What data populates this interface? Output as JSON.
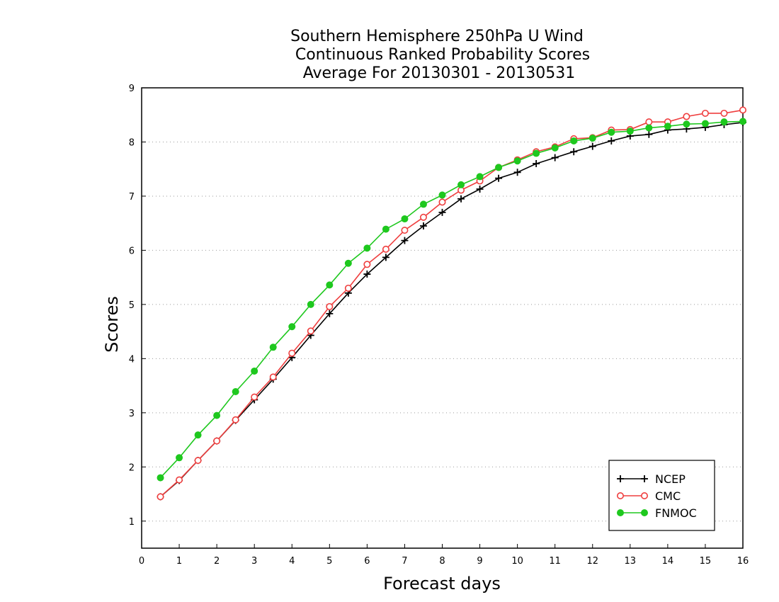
{
  "chart_data": {
    "type": "line",
    "title": "Southern Hemisphere 250hPa U Wind",
    "subtitle": "Continuous Ranked Probability Scores",
    "subtitle2": "Average For 20130301 - 20130531",
    "xlabel": "Forecast days",
    "ylabel": "Scores",
    "xlim": [
      0,
      16
    ],
    "ylim": [
      0.5,
      9
    ],
    "xticks": [
      0,
      1,
      2,
      3,
      4,
      5,
      6,
      7,
      8,
      9,
      10,
      11,
      12,
      13,
      14,
      15,
      16
    ],
    "yticks": [
      1,
      2,
      3,
      4,
      5,
      6,
      7,
      8,
      9
    ],
    "grid": "horizontal dotted",
    "legend": "bottom-right",
    "x": [
      0.5,
      1,
      1.5,
      2,
      2.5,
      3,
      3.5,
      4,
      4.5,
      5,
      5.5,
      6,
      6.5,
      7,
      7.5,
      8,
      8.5,
      9,
      9.5,
      10,
      10.5,
      11,
      11.5,
      12,
      12.5,
      13,
      13.5,
      14,
      14.5,
      15,
      15.5,
      16
    ],
    "series": [
      {
        "name": "NCEP",
        "color": "#000000",
        "marker": "plus",
        "values": [
          1.45,
          1.75,
          2.12,
          2.48,
          2.86,
          3.24,
          3.62,
          4.02,
          4.43,
          4.83,
          5.21,
          5.56,
          5.87,
          6.18,
          6.45,
          6.7,
          6.95,
          7.13,
          7.33,
          7.44,
          7.6,
          7.71,
          7.82,
          7.92,
          8.02,
          8.11,
          8.14,
          8.22,
          8.24,
          8.27,
          8.32,
          8.36
        ]
      },
      {
        "name": "CMC",
        "color": "#ef3e3e",
        "marker": "open-circle",
        "values": [
          1.45,
          1.76,
          2.12,
          2.48,
          2.87,
          3.29,
          3.66,
          4.1,
          4.51,
          4.96,
          5.3,
          5.74,
          6.02,
          6.37,
          6.61,
          6.89,
          7.11,
          7.28,
          7.53,
          7.67,
          7.82,
          7.91,
          8.06,
          8.08,
          8.22,
          8.23,
          8.37,
          8.37,
          8.47,
          8.53,
          8.53,
          8.59
        ]
      },
      {
        "name": "FNMOC",
        "color": "#1ec81e",
        "marker": "filled-circle",
        "values": [
          1.8,
          2.17,
          2.59,
          2.95,
          3.39,
          3.77,
          4.21,
          4.59,
          5.0,
          5.36,
          5.76,
          6.04,
          6.39,
          6.58,
          6.85,
          7.02,
          7.21,
          7.36,
          7.53,
          7.65,
          7.79,
          7.89,
          8.02,
          8.07,
          8.18,
          8.2,
          8.26,
          8.29,
          8.33,
          8.34,
          8.37,
          8.38
        ]
      }
    ]
  }
}
